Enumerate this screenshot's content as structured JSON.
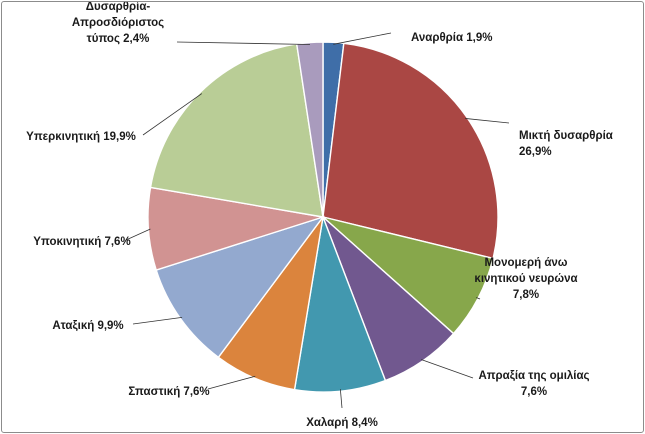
{
  "chart_data": {
    "type": "pie",
    "title": "",
    "slices": [
      {
        "label": "Αναρθρία",
        "value": 1.9,
        "text": [
          "Αναρθρία 1,9%"
        ],
        "color": "#3f6ea8"
      },
      {
        "label": "Μικτή δυσαρθρία",
        "value": 26.9,
        "text": [
          "Μικτή δυσαρθρία",
          "26,9%"
        ],
        "color": "#aa4744"
      },
      {
        "label": "Μονομερή άνω κινητικού νευρώνα",
        "value": 7.8,
        "text": [
          "Μονομερή άνω",
          "κινητικού νευρώνα",
          "7,8%"
        ],
        "color": "#87a74b"
      },
      {
        "label": "Απραξία της ομιλίας",
        "value": 7.6,
        "text": [
          "Απραξία της ομιλίας",
          "7,6%"
        ],
        "color": "#71588f"
      },
      {
        "label": "Χαλαρή",
        "value": 8.4,
        "text": [
          "Χαλαρή 8,4%"
        ],
        "color": "#4298af"
      },
      {
        "label": "Σπαστική",
        "value": 7.6,
        "text": [
          "Σπαστική 7,6%"
        ],
        "color": "#db843d"
      },
      {
        "label": "Αταξική",
        "value": 9.9,
        "text": [
          "Αταξική 9,9%"
        ],
        "color": "#93a9cf"
      },
      {
        "label": "Υποκινητική",
        "value": 7.6,
        "text": [
          "Υποκινητική 7,6%"
        ],
        "color": "#d19392"
      },
      {
        "label": "Υπερκινητική",
        "value": 19.9,
        "text": [
          "Υπερκινητική 19,9%"
        ],
        "color": "#b9cd96"
      },
      {
        "label": "Δυσαρθρία-Απροσδιόριστος τύπος",
        "value": 2.4,
        "text": [
          "Δυσαρθρία-",
          "Απροσδιόριστος",
          "τύπος 2,4%"
        ],
        "color": "#a99bbd"
      }
    ]
  }
}
